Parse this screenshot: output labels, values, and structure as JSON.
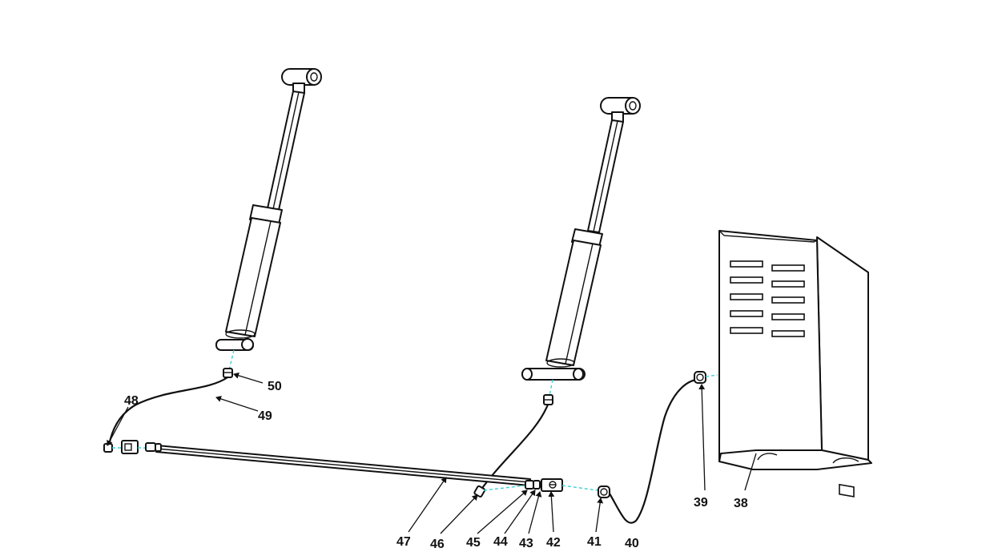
{
  "callouts": {
    "p38": "38",
    "p39": "39",
    "p40": "40",
    "p41": "41",
    "p42": "42",
    "p43": "43",
    "p44": "44",
    "p45": "45",
    "p46": "46",
    "p47": "47",
    "p48": "48",
    "p49": "49",
    "p50": "50"
  },
  "colors": {
    "line": "#111111",
    "assembly_axis": "#3fd0d4",
    "background": "#ffffff"
  }
}
